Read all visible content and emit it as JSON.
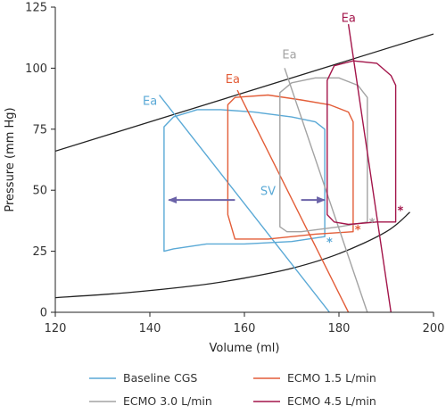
{
  "chart_data": {
    "type": "line",
    "xlabel": "Volume (ml)",
    "ylabel": "Pressure (mm Hg)",
    "xlim": [
      120,
      200
    ],
    "ylim": [
      0,
      125
    ],
    "x_ticks": [
      120,
      140,
      160,
      180,
      200
    ],
    "y_ticks": [
      0,
      25,
      50,
      75,
      100,
      125
    ],
    "grid": false,
    "legend_position": "bottom",
    "colors": {
      "baseline": "#5aa9d6",
      "ecmo15": "#e35d38",
      "ecmo30": "#a3a3a3",
      "ecmo45": "#a3154a",
      "arrow": "#6b63a8",
      "curve": "#222222"
    },
    "espvr": [
      [
        120,
        66
      ],
      [
        200,
        114
      ]
    ],
    "edpvr": [
      [
        120,
        6
      ],
      [
        135,
        8
      ],
      [
        150,
        11
      ],
      [
        160,
        14
      ],
      [
        170,
        18
      ],
      [
        180,
        24
      ],
      [
        190,
        33
      ],
      [
        195,
        41
      ]
    ],
    "series": [
      {
        "name": "Baseline CGS",
        "color_key": "baseline",
        "loop": [
          [
            143,
            25
          ],
          [
            143,
            76
          ],
          [
            145,
            80
          ],
          [
            150,
            83
          ],
          [
            155,
            83
          ],
          [
            162,
            82
          ],
          [
            170,
            80
          ],
          [
            175,
            78
          ],
          [
            177,
            75
          ],
          [
            177,
            31
          ],
          [
            170,
            29
          ],
          [
            160,
            28
          ],
          [
            152,
            28
          ],
          [
            145,
            26
          ]
        ],
        "ea_line": [
          [
            142,
            89
          ],
          [
            178,
            0
          ]
        ],
        "ea_label": "Ea",
        "ea_label_pos": [
          138.5,
          85
        ],
        "star": [
          178,
          30
        ]
      },
      {
        "name": "ECMO 1.5 L/min",
        "color_key": "ecmo15",
        "loop": [
          [
            156.5,
            40
          ],
          [
            156.5,
            85
          ],
          [
            158,
            88
          ],
          [
            165,
            89
          ],
          [
            172,
            87
          ],
          [
            178,
            85
          ],
          [
            182,
            82
          ],
          [
            183,
            78
          ],
          [
            183,
            33
          ],
          [
            175,
            32
          ],
          [
            165,
            30
          ],
          [
            158,
            30
          ]
        ],
        "ea_line": [
          [
            158.5,
            91
          ],
          [
            182,
            0
          ]
        ],
        "ea_label": "Ea",
        "ea_label_pos": [
          156,
          94
        ],
        "star": [
          184,
          35
        ]
      },
      {
        "name": "ECMO 3.0 L/min",
        "color_key": "ecmo30",
        "loop": [
          [
            167.5,
            35
          ],
          [
            167.5,
            90
          ],
          [
            170,
            94
          ],
          [
            175,
            96
          ],
          [
            180,
            96
          ],
          [
            184,
            93
          ],
          [
            186,
            88
          ],
          [
            186,
            37
          ],
          [
            180,
            35
          ],
          [
            172,
            33
          ],
          [
            169,
            33
          ]
        ],
        "ea_line": [
          [
            168.5,
            100
          ],
          [
            186,
            0
          ]
        ],
        "ea_label": "Ea",
        "ea_label_pos": [
          168,
          104
        ],
        "star": [
          187,
          38
        ]
      },
      {
        "name": "ECMO 4.5 L/min",
        "color_key": "ecmo45",
        "loop": [
          [
            177.5,
            40
          ],
          [
            177.5,
            95
          ],
          [
            179,
            101
          ],
          [
            183,
            103
          ],
          [
            188,
            102
          ],
          [
            191,
            97
          ],
          [
            192,
            93
          ],
          [
            192,
            37
          ],
          [
            188,
            37
          ],
          [
            182,
            36
          ],
          [
            179,
            37
          ]
        ],
        "ea_line": [
          [
            182,
            118
          ],
          [
            191,
            0
          ]
        ],
        "ea_label": "Ea",
        "ea_label_pos": [
          180.5,
          119
        ],
        "star": [
          193,
          43
        ]
      }
    ],
    "annotations": [
      {
        "text": "SV",
        "x": 165,
        "y": 48
      }
    ],
    "sv_arrows": [
      {
        "from": [
          158,
          46
        ],
        "to": [
          144,
          46
        ]
      },
      {
        "from": [
          172,
          46
        ],
        "to": [
          177,
          46
        ]
      }
    ],
    "star_symbol": "*",
    "legend_order": [
      "Baseline CGS",
      "ECMO 1.5 L/min",
      "ECMO 3.0 L/min",
      "ECMO 4.5 L/min"
    ]
  }
}
